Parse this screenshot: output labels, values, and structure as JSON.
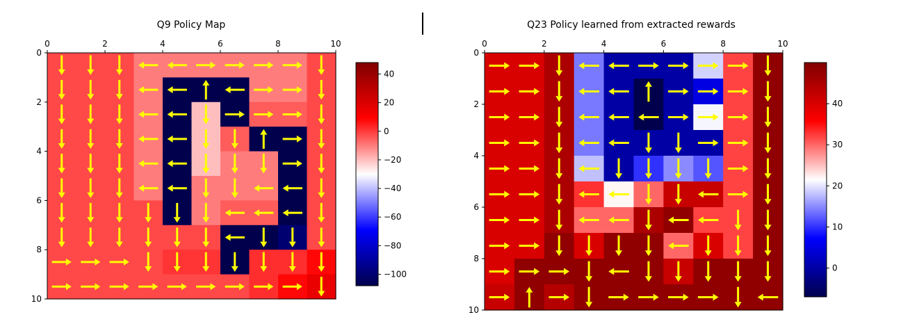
{
  "figure": {
    "background": "#ffffff"
  },
  "chart_data": [
    {
      "type": "heatmap",
      "title": "Q9 Policy Map",
      "xlabel": "",
      "ylabel": "",
      "xlim": [
        0,
        10
      ],
      "ylim": [
        10,
        0
      ],
      "xticks": [
        "0",
        "2",
        "4",
        "6",
        "8",
        "10"
      ],
      "yticks": [
        "0",
        "2",
        "4",
        "6",
        "8",
        "10"
      ],
      "colormap": "seismic",
      "colorbar": {
        "range": [
          -108,
          48
        ],
        "ticks": [
          "40",
          "20",
          "0",
          "−20",
          "−40",
          "−60",
          "−80",
          "−100"
        ]
      },
      "arrow_color": "#ffff00",
      "grid": false,
      "values": [
        [
          -2,
          -2,
          -2,
          -10,
          -10,
          -10,
          -10,
          -10,
          -10,
          -2
        ],
        [
          -2,
          -2,
          -2,
          -10,
          -108,
          -108,
          -108,
          -10,
          -10,
          -2
        ],
        [
          -2,
          -2,
          -2,
          -10,
          -108,
          -20,
          -108,
          -5,
          -5,
          -2
        ],
        [
          -2,
          -2,
          -2,
          -10,
          -108,
          -20,
          -5,
          -108,
          -108,
          -2
        ],
        [
          -2,
          -2,
          -2,
          -10,
          -108,
          -20,
          -10,
          -10,
          -108,
          -2
        ],
        [
          -2,
          -2,
          -2,
          -10,
          -108,
          -10,
          -10,
          -10,
          -108,
          -2
        ],
        [
          -2,
          -2,
          -2,
          -2,
          -108,
          -10,
          -5,
          -5,
          -108,
          -2
        ],
        [
          -2,
          -2,
          -2,
          -2,
          -2,
          -2,
          -108,
          -108,
          -100,
          -2
        ],
        [
          -2,
          -2,
          -2,
          -2,
          1,
          1,
          -108,
          2,
          2,
          8
        ],
        [
          -2,
          -2,
          -2,
          -2,
          -2,
          -2,
          -2,
          2,
          8,
          15
        ]
      ],
      "arrows": [
        [
          "down",
          "down",
          "down",
          "left",
          "left",
          "right",
          "right",
          "right",
          "right",
          "down"
        ],
        [
          "down",
          "down",
          "down",
          "left",
          "left",
          "up",
          "left",
          "right",
          "right",
          "down"
        ],
        [
          "down",
          "down",
          "down",
          "left",
          "left",
          "down",
          "right",
          "right",
          "right",
          "down"
        ],
        [
          "down",
          "down",
          "down",
          "left",
          "left",
          "down",
          "down",
          "up",
          "right",
          "down"
        ],
        [
          "down",
          "down",
          "down",
          "left",
          "left",
          "down",
          "down",
          "down",
          "right",
          "down"
        ],
        [
          "down",
          "down",
          "down",
          "left",
          "left",
          "down",
          "down",
          "left",
          "left",
          "down"
        ],
        [
          "down",
          "down",
          "down",
          "down",
          "down",
          "down",
          "left",
          "left",
          "left",
          "down"
        ],
        [
          "down",
          "down",
          "down",
          "down",
          "down",
          "down",
          "left",
          "down",
          "down",
          "down"
        ],
        [
          "right",
          "right",
          "right",
          "down",
          "down",
          "down",
          "down",
          "down",
          "down",
          "down"
        ],
        [
          "right",
          "right",
          "right",
          "right",
          "right",
          "right",
          "right",
          "right",
          "right",
          "down"
        ]
      ]
    },
    {
      "type": "heatmap",
      "title": "Q23 Policy learned from extracted rewards",
      "xlabel": "",
      "ylabel": "",
      "xlim": [
        0,
        10
      ],
      "ylim": [
        10,
        0
      ],
      "xticks": [
        "0",
        "2",
        "4",
        "6",
        "8",
        "10"
      ],
      "yticks": [
        "0",
        "2",
        "4",
        "6",
        "8",
        "10"
      ],
      "colormap": "seismic",
      "colorbar": {
        "range": [
          -7,
          50
        ],
        "ticks": [
          "40",
          "30",
          "20",
          "10",
          "0"
        ]
      },
      "arrow_color": "#ffff00",
      "grid": false,
      "values": [
        [
          40,
          40,
          45,
          14,
          0,
          0,
          0,
          19,
          32,
          48
        ],
        [
          40,
          40,
          45,
          14,
          0,
          -7,
          0,
          5,
          32,
          48
        ],
        [
          40,
          40,
          45,
          14,
          0,
          -7,
          0,
          21,
          32,
          48
        ],
        [
          40,
          40,
          45,
          14,
          0,
          0,
          0,
          0,
          32,
          48
        ],
        [
          40,
          40,
          45,
          18,
          0,
          10,
          15,
          12,
          32,
          48
        ],
        [
          40,
          40,
          45,
          33,
          22,
          30,
          42,
          42,
          32,
          48
        ],
        [
          40,
          40,
          45,
          30,
          30,
          45,
          48,
          32,
          32,
          48
        ],
        [
          40,
          40,
          48,
          40,
          48,
          48,
          30,
          40,
          32,
          48
        ],
        [
          40,
          48,
          48,
          48,
          48,
          48,
          42,
          48,
          48,
          48
        ],
        [
          42,
          48,
          44,
          48,
          48,
          48,
          48,
          48,
          48,
          48
        ]
      ],
      "arrows": [
        [
          "right",
          "right",
          "down",
          "left",
          "left",
          "right",
          "right",
          "right",
          "right",
          "down"
        ],
        [
          "right",
          "right",
          "down",
          "left",
          "left",
          "up",
          "right",
          "right",
          "right",
          "down"
        ],
        [
          "right",
          "right",
          "down",
          "left",
          "left",
          "left",
          "right",
          "right",
          "right",
          "down"
        ],
        [
          "right",
          "right",
          "down",
          "left",
          "left",
          "down",
          "down",
          "right",
          "right",
          "down"
        ],
        [
          "right",
          "right",
          "down",
          "left",
          "down",
          "down",
          "down",
          "down",
          "right",
          "down"
        ],
        [
          "right",
          "right",
          "down",
          "left",
          "left",
          "down",
          "down",
          "left",
          "right",
          "down"
        ],
        [
          "right",
          "right",
          "down",
          "left",
          "left",
          "down",
          "left",
          "left",
          "down",
          "down"
        ],
        [
          "right",
          "right",
          "down",
          "down",
          "down",
          "down",
          "left",
          "down",
          "down",
          "down"
        ],
        [
          "right",
          "right",
          "right",
          "down",
          "left",
          "down",
          "down",
          "down",
          "down",
          "down"
        ],
        [
          "right",
          "up",
          "right",
          "down",
          "right",
          "right",
          "right",
          "right",
          "down",
          "left"
        ]
      ]
    }
  ]
}
